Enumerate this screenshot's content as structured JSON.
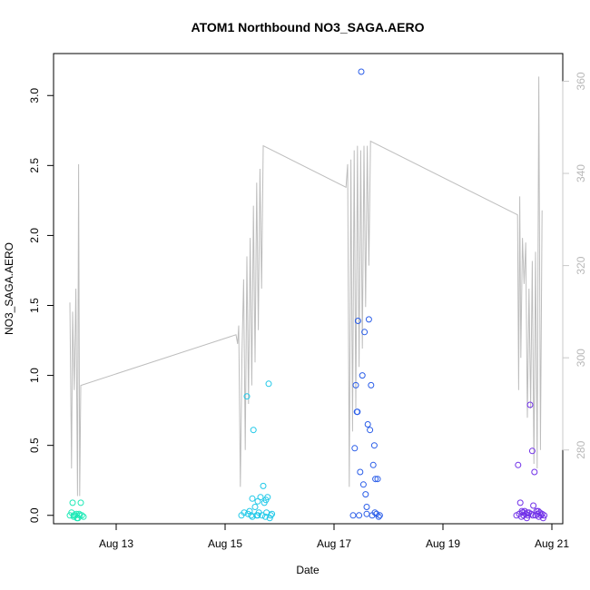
{
  "chart_data": {
    "type": "scatter",
    "title": "ATOM1 Northbound NO3_SAGA.AERO",
    "xlabel": "Date",
    "ylabel": "NO3_SAGA.AERO",
    "y2label": "",
    "x_ticks": [
      {
        "value": 13,
        "label": "Aug 13"
      },
      {
        "value": 15,
        "label": "Aug 15"
      },
      {
        "value": 17,
        "label": "Aug 17"
      },
      {
        "value": 19,
        "label": "Aug 19"
      },
      {
        "value": 21,
        "label": "Aug 21"
      }
    ],
    "xlim": [
      11.85,
      21.2
    ],
    "ylim": [
      -0.06,
      3.3
    ],
    "y_ticks": [
      0.0,
      0.5,
      1.0,
      1.5,
      2.0,
      2.5,
      3.0
    ],
    "y_tick_labels": [
      "0.0",
      "0.5",
      "1.0",
      "1.5",
      "2.0",
      "2.5",
      "3.0"
    ],
    "y2lim": [
      264,
      366
    ],
    "y2_ticks": [
      280,
      300,
      320,
      340,
      360
    ],
    "grid": false,
    "point_colors": [
      "#1de9b6",
      "#1ec8e8",
      "#2a5de8",
      "#7030e8"
    ],
    "line_color": "#bdbdbd",
    "scatter_series": [
      {
        "color": "#1de9b6",
        "points": [
          [
            12.15,
            0.0
          ],
          [
            12.18,
            0.02
          ],
          [
            12.2,
            0.09
          ],
          [
            12.22,
            -0.01
          ],
          [
            12.25,
            0.0
          ],
          [
            12.27,
            0.01
          ],
          [
            12.3,
            -0.02
          ],
          [
            12.33,
            0.0
          ],
          [
            12.35,
            0.09
          ],
          [
            12.37,
            0.0
          ],
          [
            12.4,
            -0.01
          ],
          [
            12.22,
            0.0
          ],
          [
            12.28,
            -0.02
          ],
          [
            12.32,
            0.01
          ]
        ]
      },
      {
        "color": "#1ec8e8",
        "points": [
          [
            15.3,
            0.0
          ],
          [
            15.35,
            0.02
          ],
          [
            15.4,
            0.85
          ],
          [
            15.42,
            0.01
          ],
          [
            15.45,
            0.03
          ],
          [
            15.48,
            0.0
          ],
          [
            15.5,
            0.12
          ],
          [
            15.52,
            0.61
          ],
          [
            15.55,
            0.06
          ],
          [
            15.58,
            0.0
          ],
          [
            15.6,
            0.1
          ],
          [
            15.62,
            0.02
          ],
          [
            15.65,
            0.13
          ],
          [
            15.68,
            0.0
          ],
          [
            15.7,
            0.21
          ],
          [
            15.72,
            0.09
          ],
          [
            15.74,
            -0.01
          ],
          [
            15.76,
            0.02
          ],
          [
            15.78,
            0.13
          ],
          [
            15.8,
            0.94
          ],
          [
            15.82,
            -0.02
          ],
          [
            15.84,
            0.0
          ],
          [
            15.86,
            0.01
          ],
          [
            15.5,
            -0.01
          ],
          [
            15.6,
            0.0
          ],
          [
            15.75,
            0.11
          ]
        ]
      },
      {
        "color": "#2a5de8",
        "points": [
          [
            17.35,
            0.0
          ],
          [
            17.38,
            0.48
          ],
          [
            17.4,
            0.93
          ],
          [
            17.42,
            0.74
          ],
          [
            17.44,
            1.39
          ],
          [
            17.46,
            0.0
          ],
          [
            17.48,
            0.31
          ],
          [
            17.5,
            3.17
          ],
          [
            17.52,
            1.0
          ],
          [
            17.54,
            0.22
          ],
          [
            17.56,
            1.31
          ],
          [
            17.58,
            0.15
          ],
          [
            17.6,
            0.06
          ],
          [
            17.62,
            0.65
          ],
          [
            17.64,
            1.4
          ],
          [
            17.66,
            0.61
          ],
          [
            17.68,
            0.93
          ],
          [
            17.7,
            0.0
          ],
          [
            17.72,
            0.36
          ],
          [
            17.74,
            0.5
          ],
          [
            17.76,
            0.26
          ],
          [
            17.78,
            0.01
          ],
          [
            17.8,
            0.26
          ],
          [
            17.82,
            -0.01
          ],
          [
            17.84,
            0.0
          ],
          [
            17.43,
            0.74
          ],
          [
            17.6,
            0.01
          ],
          [
            17.75,
            0.02
          ]
        ]
      },
      {
        "color": "#7030e8",
        "points": [
          [
            20.35,
            0.0
          ],
          [
            20.38,
            0.36
          ],
          [
            20.4,
            0.01
          ],
          [
            20.42,
            0.09
          ],
          [
            20.44,
            -0.01
          ],
          [
            20.46,
            0.02
          ],
          [
            20.48,
            0.0
          ],
          [
            20.5,
            0.03
          ],
          [
            20.52,
            0.01
          ],
          [
            20.54,
            -0.02
          ],
          [
            20.56,
            0.0
          ],
          [
            20.58,
            0.02
          ],
          [
            20.6,
            0.79
          ],
          [
            20.62,
            0.01
          ],
          [
            20.64,
            0.46
          ],
          [
            20.66,
            0.07
          ],
          [
            20.68,
            0.31
          ],
          [
            20.7,
            0.0
          ],
          [
            20.72,
            0.03
          ],
          [
            20.74,
            0.01
          ],
          [
            20.76,
            -0.01
          ],
          [
            20.78,
            0.02
          ],
          [
            20.8,
            0.0
          ],
          [
            20.82,
            0.01
          ],
          [
            20.84,
            -0.02
          ],
          [
            20.86,
            0.0
          ],
          [
            20.45,
            0.03
          ],
          [
            20.55,
            0.02
          ],
          [
            20.65,
            0.0
          ],
          [
            20.75,
            0.03
          ]
        ]
      }
    ],
    "line_series": {
      "name": "",
      "points": [
        [
          12.15,
          312
        ],
        [
          12.18,
          276
        ],
        [
          12.2,
          310
        ],
        [
          12.23,
          293
        ],
        [
          12.26,
          315
        ],
        [
          12.29,
          270
        ],
        [
          12.31,
          342
        ],
        [
          12.33,
          270
        ],
        [
          12.35,
          294
        ],
        [
          15.2,
          305
        ],
        [
          15.23,
          303
        ],
        [
          15.25,
          307
        ],
        [
          15.28,
          272
        ],
        [
          15.31,
          301
        ],
        [
          15.34,
          317
        ],
        [
          15.37,
          280
        ],
        [
          15.4,
          322
        ],
        [
          15.43,
          290
        ],
        [
          15.46,
          326
        ],
        [
          15.49,
          294
        ],
        [
          15.52,
          333
        ],
        [
          15.55,
          299
        ],
        [
          15.58,
          338
        ],
        [
          15.61,
          306
        ],
        [
          15.64,
          341
        ],
        [
          15.67,
          315
        ],
        [
          15.7,
          346
        ],
        [
          17.22,
          337
        ],
        [
          17.25,
          342
        ],
        [
          17.28,
          272
        ],
        [
          17.31,
          343
        ],
        [
          17.34,
          284
        ],
        [
          17.37,
          345
        ],
        [
          17.4,
          289
        ],
        [
          17.43,
          346
        ],
        [
          17.46,
          298
        ],
        [
          17.49,
          345
        ],
        [
          17.52,
          302
        ],
        [
          17.55,
          346
        ],
        [
          17.58,
          311
        ],
        [
          17.61,
          346
        ],
        [
          17.64,
          320
        ],
        [
          17.67,
          347
        ],
        [
          20.37,
          331
        ],
        [
          20.39,
          293
        ],
        [
          20.41,
          335
        ],
        [
          20.43,
          300
        ],
        [
          20.46,
          326
        ],
        [
          20.49,
          316
        ],
        [
          20.52,
          325
        ],
        [
          20.55,
          287
        ],
        [
          20.58,
          315
        ],
        [
          20.61,
          289
        ],
        [
          20.64,
          321
        ],
        [
          20.67,
          277
        ],
        [
          20.7,
          323
        ],
        [
          20.73,
          276
        ],
        [
          20.76,
          361
        ],
        [
          20.79,
          280
        ],
        [
          20.82,
          332
        ]
      ]
    }
  }
}
